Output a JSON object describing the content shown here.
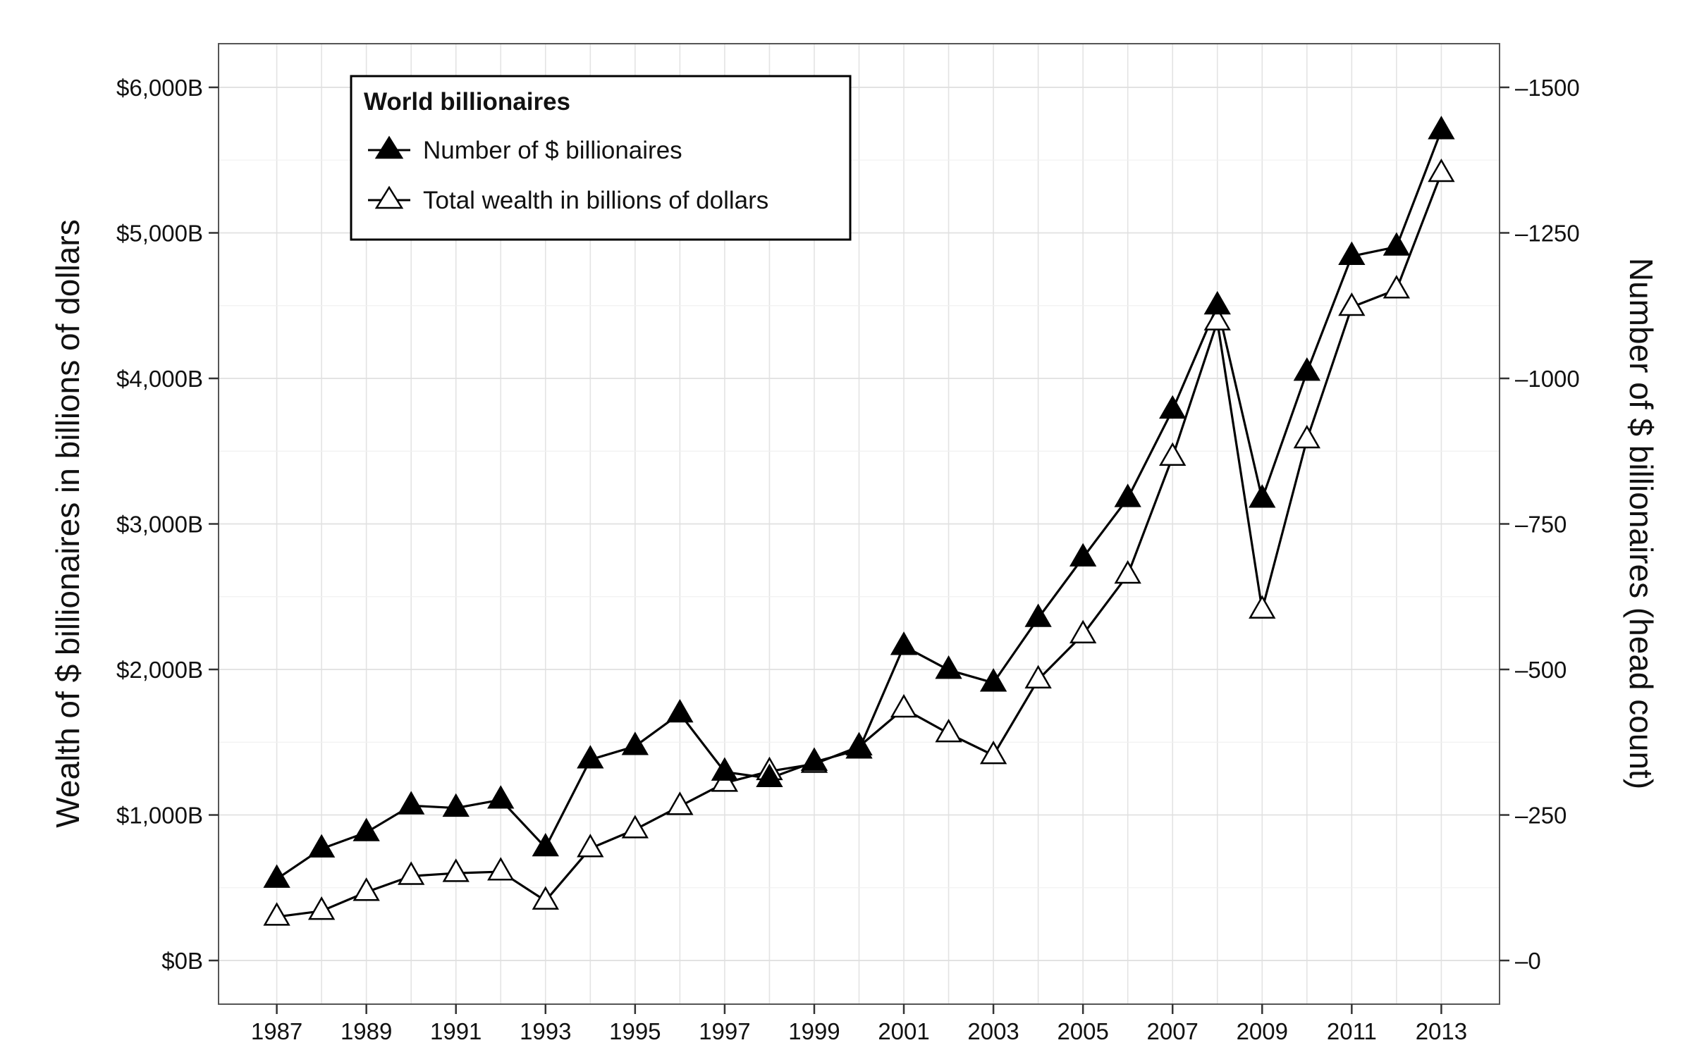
{
  "chart_data": {
    "type": "line",
    "title": "",
    "x": [
      1987,
      1988,
      1989,
      1990,
      1991,
      1992,
      1993,
      1994,
      1995,
      1996,
      1997,
      1998,
      1999,
      2000,
      2001,
      2002,
      2003,
      2004,
      2005,
      2006,
      2007,
      2008,
      2009,
      2010,
      2011,
      2012,
      2013
    ],
    "x_tick_labels": [
      "1987",
      "1989",
      "1991",
      "1993",
      "1995",
      "1997",
      "1999",
      "2001",
      "2003",
      "2005",
      "2007",
      "2009",
      "2011",
      "2013"
    ],
    "xlim": [
      1985.7,
      2014.3
    ],
    "y_left": {
      "label": "Wealth of $ billionaires in billions of dollars",
      "range": [
        -300,
        6300
      ],
      "ticks": [
        0,
        1000,
        2000,
        3000,
        4000,
        5000,
        6000
      ],
      "tick_labels": [
        "$0B",
        "$1,000B",
        "$2,000B",
        "$3,000B",
        "$4,000B",
        "$5,000B",
        "$6,000B"
      ]
    },
    "y_right": {
      "label": "Number of $ billionaires (head count)",
      "range": [
        -75,
        1575
      ],
      "ticks": [
        0,
        250,
        500,
        750,
        1000,
        1250,
        1500
      ],
      "tick_labels": [
        "0",
        "250",
        "500",
        "750",
        "1000",
        "1250",
        "1500"
      ]
    },
    "grid": true,
    "legend": {
      "title": "World billionaires",
      "position": "top-left"
    },
    "series": [
      {
        "name": "Number of $ billionaires",
        "axis": "right",
        "marker": "filled-triangle",
        "color": "#000000",
        "values": [
          140,
          192,
          220,
          266,
          262,
          276,
          194,
          345,
          368,
          424,
          324,
          313,
          341,
          362,
          540,
          499,
          477,
          588,
          692,
          794,
          946,
          1125,
          793,
          1011,
          1210,
          1226,
          1426
        ]
      },
      {
        "name": "Total wealth in billions of dollars",
        "axis": "left",
        "marker": "open-triangle",
        "color": "#000000",
        "values": [
          300,
          340,
          470,
          580,
          600,
          610,
          410,
          770,
          900,
          1060,
          1220,
          1300,
          1350,
          1470,
          1730,
          1560,
          1410,
          1930,
          2240,
          2650,
          3460,
          4390,
          2410,
          3580,
          4490,
          4610,
          5410
        ]
      }
    ]
  }
}
